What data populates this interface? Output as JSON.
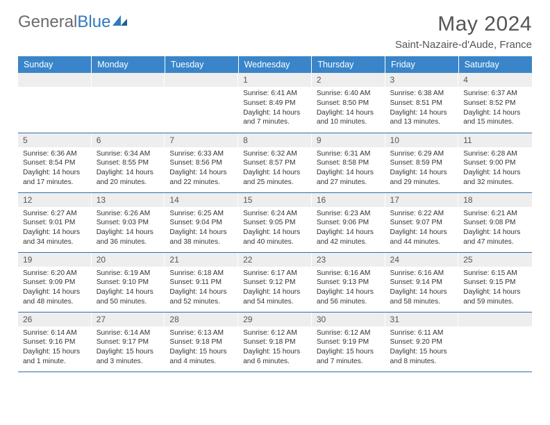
{
  "logo": {
    "text1": "General",
    "text2": "Blue"
  },
  "title": "May 2024",
  "location": "Saint-Nazaire-d'Aude, France",
  "colors": {
    "header_bg": "#3a85c9",
    "header_text": "#ffffff",
    "daynum_bg": "#eeeeee",
    "row_border": "#2f6fa8",
    "title_color": "#555555",
    "body_text": "#333333"
  },
  "weekdays": [
    "Sunday",
    "Monday",
    "Tuesday",
    "Wednesday",
    "Thursday",
    "Friday",
    "Saturday"
  ],
  "weeks": [
    [
      null,
      null,
      null,
      {
        "n": "1",
        "sr": "6:41 AM",
        "ss": "8:49 PM",
        "dl": "14 hours and 7 minutes."
      },
      {
        "n": "2",
        "sr": "6:40 AM",
        "ss": "8:50 PM",
        "dl": "14 hours and 10 minutes."
      },
      {
        "n": "3",
        "sr": "6:38 AM",
        "ss": "8:51 PM",
        "dl": "14 hours and 13 minutes."
      },
      {
        "n": "4",
        "sr": "6:37 AM",
        "ss": "8:52 PM",
        "dl": "14 hours and 15 minutes."
      }
    ],
    [
      {
        "n": "5",
        "sr": "6:36 AM",
        "ss": "8:54 PM",
        "dl": "14 hours and 17 minutes."
      },
      {
        "n": "6",
        "sr": "6:34 AM",
        "ss": "8:55 PM",
        "dl": "14 hours and 20 minutes."
      },
      {
        "n": "7",
        "sr": "6:33 AM",
        "ss": "8:56 PM",
        "dl": "14 hours and 22 minutes."
      },
      {
        "n": "8",
        "sr": "6:32 AM",
        "ss": "8:57 PM",
        "dl": "14 hours and 25 minutes."
      },
      {
        "n": "9",
        "sr": "6:31 AM",
        "ss": "8:58 PM",
        "dl": "14 hours and 27 minutes."
      },
      {
        "n": "10",
        "sr": "6:29 AM",
        "ss": "8:59 PM",
        "dl": "14 hours and 29 minutes."
      },
      {
        "n": "11",
        "sr": "6:28 AM",
        "ss": "9:00 PM",
        "dl": "14 hours and 32 minutes."
      }
    ],
    [
      {
        "n": "12",
        "sr": "6:27 AM",
        "ss": "9:01 PM",
        "dl": "14 hours and 34 minutes."
      },
      {
        "n": "13",
        "sr": "6:26 AM",
        "ss": "9:03 PM",
        "dl": "14 hours and 36 minutes."
      },
      {
        "n": "14",
        "sr": "6:25 AM",
        "ss": "9:04 PM",
        "dl": "14 hours and 38 minutes."
      },
      {
        "n": "15",
        "sr": "6:24 AM",
        "ss": "9:05 PM",
        "dl": "14 hours and 40 minutes."
      },
      {
        "n": "16",
        "sr": "6:23 AM",
        "ss": "9:06 PM",
        "dl": "14 hours and 42 minutes."
      },
      {
        "n": "17",
        "sr": "6:22 AM",
        "ss": "9:07 PM",
        "dl": "14 hours and 44 minutes."
      },
      {
        "n": "18",
        "sr": "6:21 AM",
        "ss": "9:08 PM",
        "dl": "14 hours and 47 minutes."
      }
    ],
    [
      {
        "n": "19",
        "sr": "6:20 AM",
        "ss": "9:09 PM",
        "dl": "14 hours and 48 minutes."
      },
      {
        "n": "20",
        "sr": "6:19 AM",
        "ss": "9:10 PM",
        "dl": "14 hours and 50 minutes."
      },
      {
        "n": "21",
        "sr": "6:18 AM",
        "ss": "9:11 PM",
        "dl": "14 hours and 52 minutes."
      },
      {
        "n": "22",
        "sr": "6:17 AM",
        "ss": "9:12 PM",
        "dl": "14 hours and 54 minutes."
      },
      {
        "n": "23",
        "sr": "6:16 AM",
        "ss": "9:13 PM",
        "dl": "14 hours and 56 minutes."
      },
      {
        "n": "24",
        "sr": "6:16 AM",
        "ss": "9:14 PM",
        "dl": "14 hours and 58 minutes."
      },
      {
        "n": "25",
        "sr": "6:15 AM",
        "ss": "9:15 PM",
        "dl": "14 hours and 59 minutes."
      }
    ],
    [
      {
        "n": "26",
        "sr": "6:14 AM",
        "ss": "9:16 PM",
        "dl": "15 hours and 1 minute."
      },
      {
        "n": "27",
        "sr": "6:14 AM",
        "ss": "9:17 PM",
        "dl": "15 hours and 3 minutes."
      },
      {
        "n": "28",
        "sr": "6:13 AM",
        "ss": "9:18 PM",
        "dl": "15 hours and 4 minutes."
      },
      {
        "n": "29",
        "sr": "6:12 AM",
        "ss": "9:18 PM",
        "dl": "15 hours and 6 minutes."
      },
      {
        "n": "30",
        "sr": "6:12 AM",
        "ss": "9:19 PM",
        "dl": "15 hours and 7 minutes."
      },
      {
        "n": "31",
        "sr": "6:11 AM",
        "ss": "9:20 PM",
        "dl": "15 hours and 8 minutes."
      },
      null
    ]
  ],
  "labels": {
    "sunrise": "Sunrise:",
    "sunset": "Sunset:",
    "daylight": "Daylight:"
  }
}
